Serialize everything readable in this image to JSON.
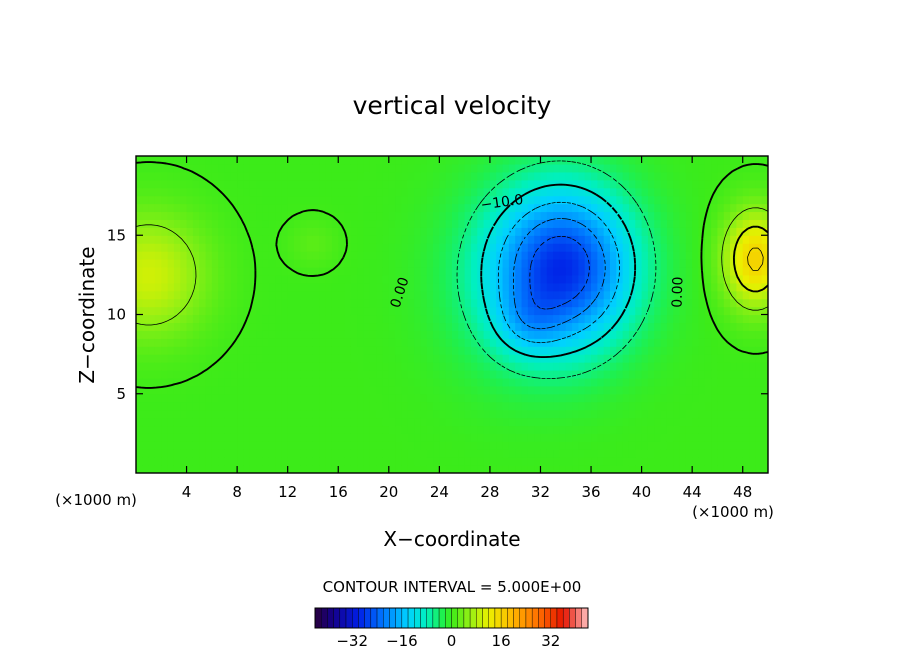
{
  "chart_data": {
    "type": "heatmap",
    "title": "vertical velocity",
    "xlabel": "X−coordinate",
    "ylabel": "Z−coordinate",
    "x_unit_left": "(×1000 m)",
    "x_unit_right": "(×1000 m)",
    "xlim": [
      0,
      50
    ],
    "ylim": [
      0,
      20
    ],
    "x_ticks": [
      4,
      8,
      12,
      16,
      20,
      24,
      28,
      32,
      36,
      40,
      44,
      48
    ],
    "y_ticks": [
      5,
      10,
      15
    ],
    "contour_interval_label": "CONTOUR INTERVAL =  5.000E+00",
    "contour_labels": [
      {
        "text": "−10.0",
        "x": 29.0,
        "y": 16.8,
        "rot": -8
      },
      {
        "text": "0.00",
        "x": 21.2,
        "y": 11.3,
        "rot": -72
      },
      {
        "text": "0.00",
        "x": 43.2,
        "y": 11.4,
        "rot": -88
      }
    ],
    "colorbar": {
      "range": [
        -44,
        44
      ],
      "ticks": [
        -32,
        -16,
        0,
        16,
        32
      ],
      "tick_labels": [
        "−32",
        "−16",
        "0",
        "16",
        "32"
      ]
    },
    "field_blobs": [
      {
        "x": 34,
        "y": 13,
        "sx": 5.5,
        "sz": 5.0,
        "amp": -26
      },
      {
        "x": 31,
        "y": 9.5,
        "sx": 2.5,
        "sz": 2.0,
        "amp": -5
      },
      {
        "x": 30,
        "y": 12,
        "sx": 6.0,
        "sz": 6.0,
        "amp": -5
      },
      {
        "x": 1,
        "y": 12.5,
        "sx": 4.5,
        "sz": 3.8,
        "amp": 10
      },
      {
        "x": 49,
        "y": 13.5,
        "sx": 2.5,
        "sz": 3.0,
        "amp": 16
      },
      {
        "x": 14,
        "y": 14.5,
        "sx": 2.0,
        "sz": 1.5,
        "amp": 2
      }
    ]
  }
}
